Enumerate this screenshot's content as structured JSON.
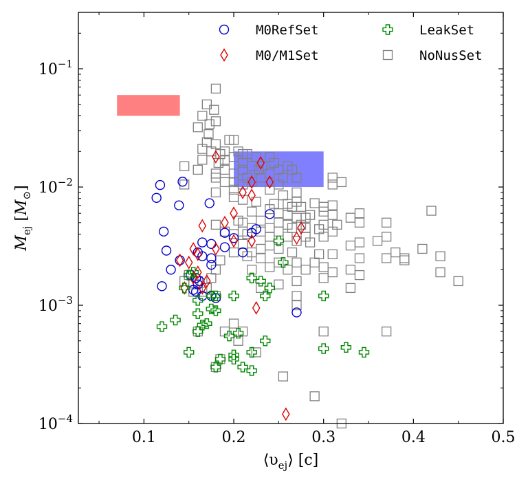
{
  "chart_data": {
    "type": "scatter",
    "xlabel": "⟨υ_ej⟩ [c]",
    "ylabel": "M_ej [M_⊙]",
    "xlim": [
      0.027,
      0.5
    ],
    "ylim": [
      0.0001,
      0.3
    ],
    "yscale": "log",
    "grid": false,
    "legend_placement": "top-right",
    "x_ticks": [
      0.1,
      0.2,
      0.3,
      0.4,
      0.5
    ],
    "x_tick_labels": [
      "0.1",
      "0.2",
      "0.3",
      "0.4",
      "0.5"
    ],
    "y_ticks": [
      0.0001,
      0.001,
      0.01,
      0.1
    ],
    "y_tick_labels": [
      {
        "base": "10",
        "exp": "−4"
      },
      {
        "base": "10",
        "exp": "−3"
      },
      {
        "base": "10",
        "exp": "−2"
      },
      {
        "base": "10",
        "exp": "−1"
      }
    ],
    "regions": [
      {
        "x": [
          0.07,
          0.14
        ],
        "y": [
          0.04,
          0.06
        ],
        "color": "#ff8080"
      },
      {
        "x": [
          0.2,
          0.3
        ],
        "y": [
          0.01,
          0.02
        ],
        "color": "#8080ff"
      }
    ],
    "series": [
      {
        "name": "NoNusSet",
        "marker": "square",
        "color": "#808080",
        "points": [
          [
            0.18,
            0.068
          ],
          [
            0.17,
            0.05
          ],
          [
            0.178,
            0.045
          ],
          [
            0.165,
            0.04
          ],
          [
            0.18,
            0.036
          ],
          [
            0.173,
            0.034
          ],
          [
            0.16,
            0.032
          ],
          [
            0.172,
            0.028
          ],
          [
            0.2,
            0.025
          ],
          [
            0.195,
            0.025
          ],
          [
            0.17,
            0.024
          ],
          [
            0.18,
            0.023
          ],
          [
            0.165,
            0.021
          ],
          [
            0.175,
            0.02
          ],
          [
            0.19,
            0.02
          ],
          [
            0.185,
            0.019
          ],
          [
            0.205,
            0.02
          ],
          [
            0.21,
            0.019
          ],
          [
            0.215,
            0.019
          ],
          [
            0.2,
            0.018
          ],
          [
            0.225,
            0.018
          ],
          [
            0.24,
            0.018
          ],
          [
            0.165,
            0.017
          ],
          [
            0.183,
            0.016
          ],
          [
            0.19,
            0.017
          ],
          [
            0.21,
            0.016
          ],
          [
            0.22,
            0.015
          ],
          [
            0.232,
            0.015
          ],
          [
            0.245,
            0.016
          ],
          [
            0.26,
            0.015
          ],
          [
            0.21,
            0.014
          ],
          [
            0.228,
            0.014
          ],
          [
            0.25,
            0.014
          ],
          [
            0.265,
            0.014
          ],
          [
            0.19,
            0.014
          ],
          [
            0.18,
            0.013
          ],
          [
            0.145,
            0.015
          ],
          [
            0.16,
            0.014
          ],
          [
            0.2,
            0.013
          ],
          [
            0.24,
            0.013
          ],
          [
            0.255,
            0.012
          ],
          [
            0.215,
            0.012
          ],
          [
            0.23,
            0.012
          ],
          [
            0.27,
            0.012
          ],
          [
            0.18,
            0.012
          ],
          [
            0.2,
            0.011
          ],
          [
            0.19,
            0.011
          ],
          [
            0.22,
            0.011
          ],
          [
            0.21,
            0.0105
          ],
          [
            0.25,
            0.0105
          ],
          [
            0.145,
            0.0105
          ],
          [
            0.31,
            0.012
          ],
          [
            0.31,
            0.0105
          ],
          [
            0.32,
            0.011
          ],
          [
            0.24,
            0.0095
          ],
          [
            0.2,
            0.0095
          ],
          [
            0.18,
            0.009
          ],
          [
            0.27,
            0.009
          ],
          [
            0.255,
            0.0085
          ],
          [
            0.2,
            0.0082
          ],
          [
            0.21,
            0.0078
          ],
          [
            0.225,
            0.0075
          ],
          [
            0.27,
            0.0075
          ],
          [
            0.245,
            0.0072
          ],
          [
            0.26,
            0.0072
          ],
          [
            0.29,
            0.0073
          ],
          [
            0.31,
            0.007
          ],
          [
            0.3,
            0.0068
          ],
          [
            0.265,
            0.0068
          ],
          [
            0.275,
            0.0068
          ],
          [
            0.24,
            0.0065
          ],
          [
            0.22,
            0.0062
          ],
          [
            0.3,
            0.0062
          ],
          [
            0.25,
            0.006
          ],
          [
            0.26,
            0.0058
          ],
          [
            0.285,
            0.0058
          ],
          [
            0.31,
            0.0058
          ],
          [
            0.34,
            0.006
          ],
          [
            0.33,
            0.0055
          ],
          [
            0.27,
            0.0055
          ],
          [
            0.28,
            0.0055
          ],
          [
            0.23,
            0.0052
          ],
          [
            0.205,
            0.0052
          ],
          [
            0.21,
            0.005
          ],
          [
            0.25,
            0.005
          ],
          [
            0.26,
            0.0048
          ],
          [
            0.275,
            0.0048
          ],
          [
            0.3,
            0.0048
          ],
          [
            0.315,
            0.0048
          ],
          [
            0.34,
            0.005
          ],
          [
            0.37,
            0.005
          ],
          [
            0.22,
            0.0045
          ],
          [
            0.24,
            0.0045
          ],
          [
            0.265,
            0.0045
          ],
          [
            0.28,
            0.0045
          ],
          [
            0.295,
            0.0044
          ],
          [
            0.31,
            0.0042
          ],
          [
            0.23,
            0.0042
          ],
          [
            0.25,
            0.0042
          ],
          [
            0.21,
            0.0042
          ],
          [
            0.19,
            0.0042
          ],
          [
            0.18,
            0.0048
          ],
          [
            0.2,
            0.004
          ],
          [
            0.215,
            0.004
          ],
          [
            0.24,
            0.0038
          ],
          [
            0.26,
            0.0038
          ],
          [
            0.28,
            0.0038
          ],
          [
            0.3,
            0.0038
          ],
          [
            0.37,
            0.0038
          ],
          [
            0.36,
            0.0035
          ],
          [
            0.34,
            0.0034
          ],
          [
            0.27,
            0.0035
          ],
          [
            0.285,
            0.0034
          ],
          [
            0.24,
            0.0032
          ],
          [
            0.23,
            0.003
          ],
          [
            0.21,
            0.0033
          ],
          [
            0.25,
            0.003
          ],
          [
            0.22,
            0.0028
          ],
          [
            0.265,
            0.0028
          ],
          [
            0.295,
            0.0027
          ],
          [
            0.31,
            0.0027
          ],
          [
            0.34,
            0.0025
          ],
          [
            0.38,
            0.0028
          ],
          [
            0.39,
            0.0025
          ],
          [
            0.41,
            0.003
          ],
          [
            0.43,
            0.0026
          ],
          [
            0.45,
            0.0016
          ],
          [
            0.43,
            0.0019
          ],
          [
            0.37,
            0.0025
          ],
          [
            0.39,
            0.0024
          ],
          [
            0.42,
            0.0063
          ],
          [
            0.33,
            0.0032
          ],
          [
            0.2,
            0.0028
          ],
          [
            0.215,
            0.0026
          ],
          [
            0.23,
            0.0025
          ],
          [
            0.25,
            0.0023
          ],
          [
            0.27,
            0.0023
          ],
          [
            0.29,
            0.0023
          ],
          [
            0.3,
            0.0021
          ],
          [
            0.31,
            0.0019
          ],
          [
            0.33,
            0.002
          ],
          [
            0.34,
            0.0018
          ],
          [
            0.24,
            0.0021
          ],
          [
            0.26,
            0.002
          ],
          [
            0.28,
            0.002
          ],
          [
            0.22,
            0.002
          ],
          [
            0.3,
            0.0017
          ],
          [
            0.27,
            0.0016
          ],
          [
            0.33,
            0.0014
          ],
          [
            0.25,
            0.0015
          ],
          [
            0.23,
            0.0014
          ],
          [
            0.185,
            0.0024
          ],
          [
            0.18,
            0.002
          ],
          [
            0.175,
            0.0017
          ],
          [
            0.16,
            0.0016
          ],
          [
            0.155,
            0.0015
          ],
          [
            0.17,
            0.0014
          ],
          [
            0.165,
            0.0013
          ],
          [
            0.155,
            0.0013
          ],
          [
            0.18,
            0.0012
          ],
          [
            0.27,
            0.0012
          ],
          [
            0.27,
            0.001
          ],
          [
            0.15,
            0.0018
          ],
          [
            0.145,
            0.0016
          ],
          [
            0.3,
            0.0006
          ],
          [
            0.37,
            0.0006
          ],
          [
            0.2,
            0.0007
          ],
          [
            0.21,
            0.0006
          ],
          [
            0.19,
            0.0006
          ],
          [
            0.205,
            0.0005
          ],
          [
            0.225,
            0.0004
          ],
          [
            0.16,
            0.0006
          ],
          [
            0.18,
            0.0003
          ],
          [
            0.185,
            0.00035
          ],
          [
            0.255,
            0.00025
          ],
          [
            0.29,
            0.00017
          ],
          [
            0.32,
            0.0001
          ]
        ]
      },
      {
        "name": "M0RefSet",
        "marker": "circle",
        "color": "#0000cc",
        "points": [
          [
            0.118,
            0.0104
          ],
          [
            0.143,
            0.0111
          ],
          [
            0.114,
            0.0081
          ],
          [
            0.139,
            0.007
          ],
          [
            0.173,
            0.0073
          ],
          [
            0.122,
            0.0042
          ],
          [
            0.24,
            0.0059
          ],
          [
            0.225,
            0.0044
          ],
          [
            0.22,
            0.0041
          ],
          [
            0.19,
            0.0041
          ],
          [
            0.2,
            0.0037
          ],
          [
            0.165,
            0.0034
          ],
          [
            0.175,
            0.0033
          ],
          [
            0.125,
            0.0029
          ],
          [
            0.16,
            0.0028
          ],
          [
            0.21,
            0.0028
          ],
          [
            0.19,
            0.0031
          ],
          [
            0.165,
            0.0026
          ],
          [
            0.175,
            0.0025
          ],
          [
            0.14,
            0.0024
          ],
          [
            0.13,
            0.002
          ],
          [
            0.175,
            0.0022
          ],
          [
            0.152,
            0.0018
          ],
          [
            0.158,
            0.0017
          ],
          [
            0.162,
            0.0016
          ],
          [
            0.16,
            0.0015
          ],
          [
            0.12,
            0.00145
          ],
          [
            0.158,
            0.0013
          ],
          [
            0.175,
            0.0012
          ],
          [
            0.18,
            0.00115
          ],
          [
            0.165,
            0.0012
          ],
          [
            0.27,
            0.00087
          ],
          [
            0.155,
            0.00135
          ]
        ]
      },
      {
        "name": "M0/M1Set",
        "marker": "diamond",
        "color": "#dd0000",
        "points": [
          [
            0.18,
            0.018
          ],
          [
            0.23,
            0.016
          ],
          [
            0.22,
            0.011
          ],
          [
            0.24,
            0.011
          ],
          [
            0.21,
            0.009
          ],
          [
            0.22,
            0.0085
          ],
          [
            0.2,
            0.006
          ],
          [
            0.19,
            0.005
          ],
          [
            0.165,
            0.0047
          ],
          [
            0.275,
            0.0045
          ],
          [
            0.27,
            0.0037
          ],
          [
            0.2,
            0.0035
          ],
          [
            0.22,
            0.0035
          ],
          [
            0.18,
            0.003
          ],
          [
            0.155,
            0.003
          ],
          [
            0.16,
            0.0027
          ],
          [
            0.15,
            0.0023
          ],
          [
            0.14,
            0.0024
          ],
          [
            0.16,
            0.0019
          ],
          [
            0.155,
            0.0017
          ],
          [
            0.17,
            0.0016
          ],
          [
            0.145,
            0.0014
          ],
          [
            0.165,
            0.0014
          ],
          [
            0.225,
            0.00095
          ],
          [
            0.258,
            0.00012
          ]
        ]
      },
      {
        "name": "LeakSet",
        "marker": "plus",
        "color": "#008800",
        "points": [
          [
            0.25,
            0.0035
          ],
          [
            0.255,
            0.0023
          ],
          [
            0.22,
            0.0017
          ],
          [
            0.23,
            0.0016
          ],
          [
            0.24,
            0.0014
          ],
          [
            0.235,
            0.0012
          ],
          [
            0.2,
            0.0012
          ],
          [
            0.3,
            0.0012
          ],
          [
            0.18,
            0.0012
          ],
          [
            0.175,
            0.0012
          ],
          [
            0.16,
            0.0011
          ],
          [
            0.175,
            0.00093
          ],
          [
            0.18,
            0.0009
          ],
          [
            0.16,
            0.00085
          ],
          [
            0.155,
            0.0019
          ],
          [
            0.15,
            0.0018
          ],
          [
            0.145,
            0.0014
          ],
          [
            0.135,
            0.00075
          ],
          [
            0.12,
            0.00066
          ],
          [
            0.165,
            0.00068
          ],
          [
            0.17,
            0.0007
          ],
          [
            0.16,
            0.0006
          ],
          [
            0.195,
            0.00055
          ],
          [
            0.205,
            0.00058
          ],
          [
            0.235,
            0.0005
          ],
          [
            0.22,
            0.0004
          ],
          [
            0.3,
            0.00043
          ],
          [
            0.325,
            0.00044
          ],
          [
            0.345,
            0.0004
          ],
          [
            0.15,
            0.0004
          ],
          [
            0.185,
            0.00035
          ],
          [
            0.2,
            0.00035
          ],
          [
            0.21,
            0.0003
          ],
          [
            0.22,
            0.00028
          ],
          [
            0.18,
            0.0003
          ],
          [
            0.2,
            0.00038
          ]
        ]
      }
    ]
  }
}
